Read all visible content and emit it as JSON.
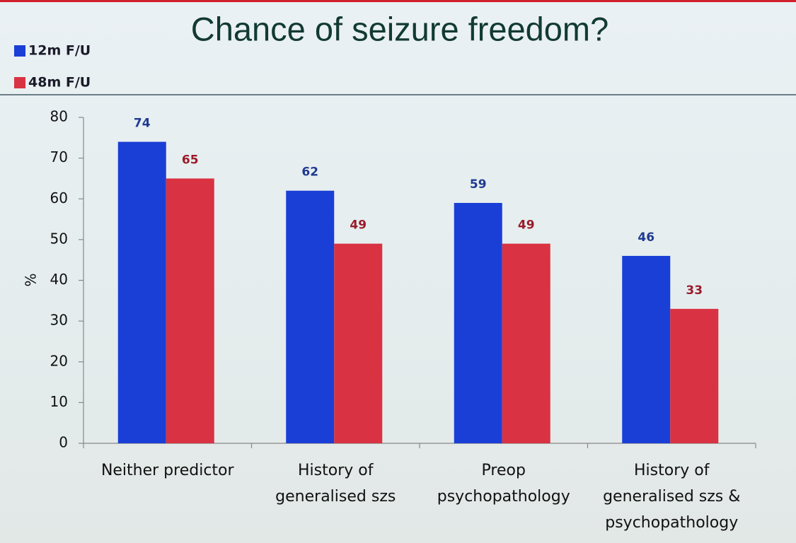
{
  "chart_data": {
    "type": "bar",
    "title": "Chance of seizure freedom?",
    "y_label": "%",
    "categories": [
      "Neither predictor",
      "History of\ngeneralised szs",
      "Preop\npsychopathology",
      "History of\ngeneralised szs &\npsychopathology"
    ],
    "series": [
      {
        "name": "12m F/U",
        "color": "#1a3fd6",
        "values": [
          74,
          62,
          59,
          46
        ]
      },
      {
        "name": "48m F/U",
        "color": "#d93242",
        "values": [
          65,
          49,
          49,
          33
        ]
      }
    ],
    "ylim": [
      0,
      80
    ],
    "yticks": [
      0,
      10,
      20,
      30,
      40,
      50,
      60,
      70,
      80
    ],
    "legend": "upper left",
    "grid": false
  }
}
